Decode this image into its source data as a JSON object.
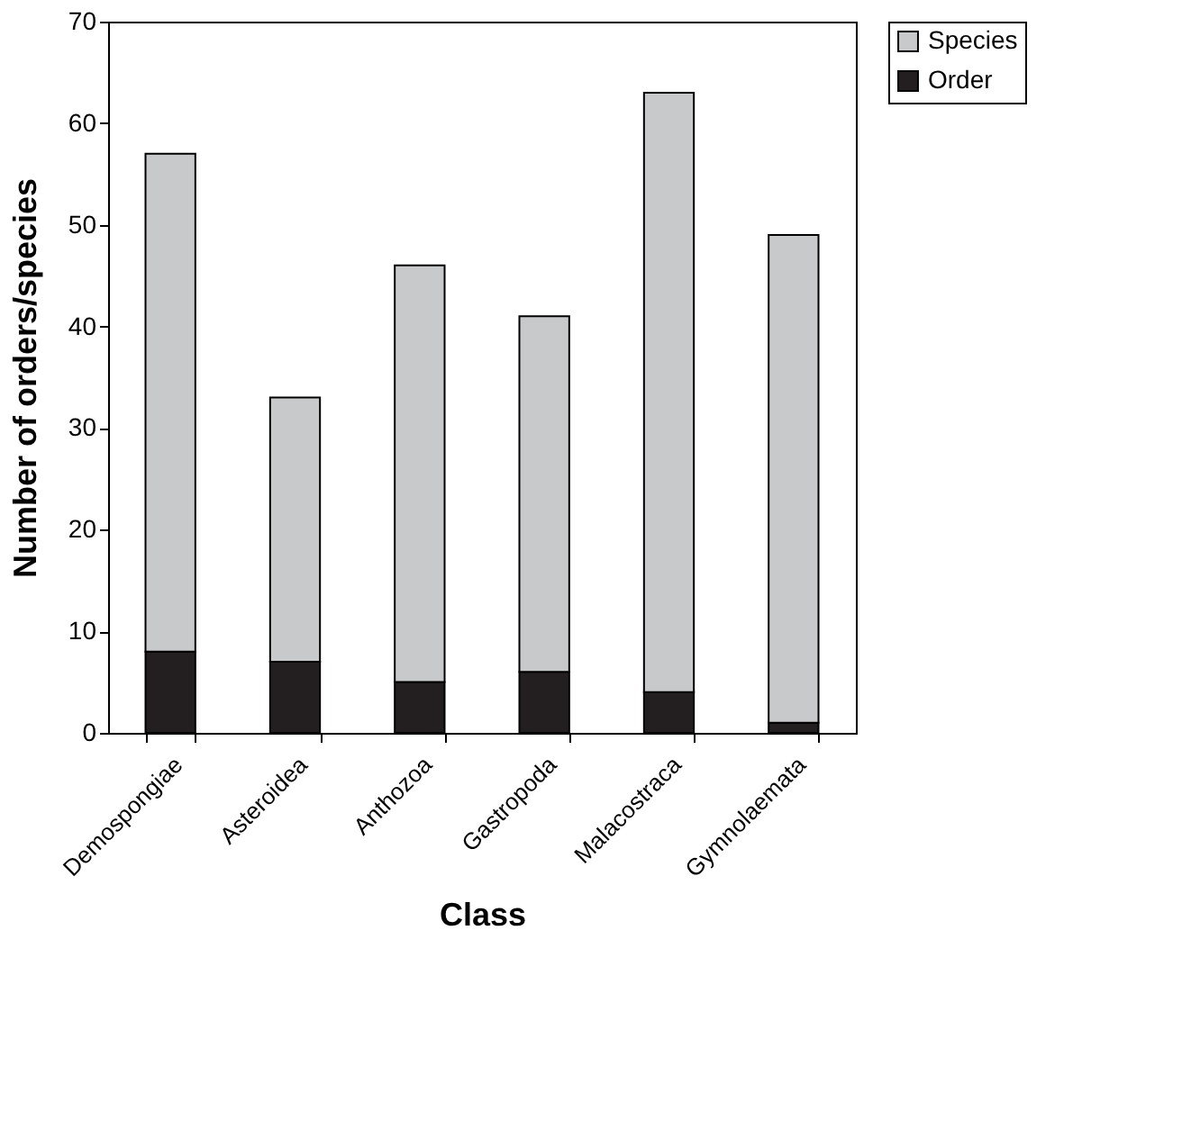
{
  "chart_data": {
    "type": "bar",
    "stacked": true,
    "xlabel": "Class",
    "ylabel": "Number of orders/species",
    "categories": [
      "Demospongiae",
      "Asteroidea",
      "Anthozoa",
      "Gastropoda",
      "Malacostraca",
      "Gymnolaemata"
    ],
    "series": [
      {
        "name": "Order",
        "color": "#231f20",
        "values": [
          8,
          7,
          5,
          6,
          4,
          1
        ]
      },
      {
        "name": "Species",
        "color": "#c8c9cb",
        "values": [
          49,
          26,
          41,
          35,
          59,
          48
        ]
      }
    ],
    "ylim": [
      0,
      70
    ],
    "yticks": [
      0,
      10,
      20,
      30,
      40,
      50,
      60,
      70
    ],
    "grid": false,
    "legend": "top right"
  }
}
